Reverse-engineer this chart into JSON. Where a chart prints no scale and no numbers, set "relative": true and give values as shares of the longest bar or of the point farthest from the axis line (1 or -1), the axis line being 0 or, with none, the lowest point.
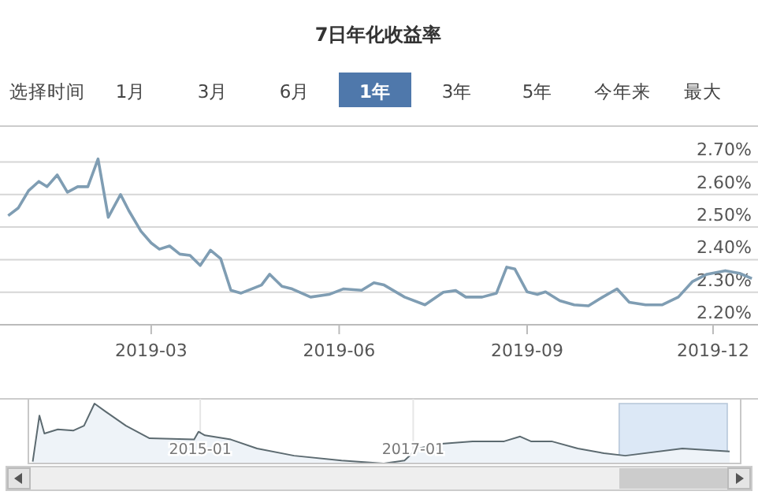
{
  "chart_data": [
    {
      "type": "line",
      "title": "7日年化收益率",
      "annotations": [
        "选择时间",
        "1月",
        "3月",
        "6月",
        "1年",
        "3年",
        "5年",
        "今年来",
        "最大"
      ],
      "x": [
        "2018-12-21",
        "2018-12-26",
        "2018-12-31",
        "2019-01-05",
        "2019-01-09",
        "2019-01-14",
        "2019-01-19",
        "2019-01-24",
        "2019-01-29",
        "2019-02-03",
        "2019-02-08",
        "2019-02-14",
        "2019-02-18",
        "2019-02-24",
        "2019-03-01",
        "2019-03-05",
        "2019-03-10",
        "2019-03-15",
        "2019-03-20",
        "2019-03-25",
        "2019-03-30",
        "2019-04-04",
        "2019-04-09",
        "2019-04-14",
        "2019-04-24",
        "2019-04-28",
        "2019-05-04",
        "2019-05-09",
        "2019-05-18",
        "2019-05-27",
        "2019-06-03",
        "2019-06-12",
        "2019-06-18",
        "2019-06-23",
        "2019-07-03",
        "2019-07-13",
        "2019-07-22",
        "2019-07-28",
        "2019-08-02",
        "2019-08-10",
        "2019-08-17",
        "2019-08-22",
        "2019-08-26",
        "2019-09-01",
        "2019-09-06",
        "2019-09-10",
        "2019-09-17",
        "2019-09-24",
        "2019-10-01",
        "2019-10-08",
        "2019-10-15",
        "2019-10-21",
        "2019-10-29",
        "2019-11-06",
        "2019-11-14",
        "2019-11-21",
        "2019-11-28",
        "2019-12-07",
        "2019-12-14",
        "2019-12-20"
      ],
      "series": [
        {
          "color": "#7f9db3",
          "values": [
            2.535,
            2.559,
            2.612,
            2.64,
            2.624,
            2.66,
            2.607,
            2.624,
            2.624,
            2.709,
            2.53,
            2.6,
            2.551,
            2.487,
            2.451,
            2.432,
            2.442,
            2.417,
            2.413,
            2.382,
            2.429,
            2.403,
            2.306,
            2.297,
            2.322,
            2.355,
            2.318,
            2.31,
            2.285,
            2.293,
            2.31,
            2.306,
            2.329,
            2.322,
            2.285,
            2.261,
            2.3,
            2.305,
            2.285,
            2.285,
            2.297,
            2.377,
            2.371,
            2.301,
            2.293,
            2.301,
            2.274,
            2.261,
            2.258,
            2.285,
            2.31,
            2.269,
            2.261,
            2.261,
            2.285,
            2.333,
            2.355,
            2.366,
            2.358,
            2.342
          ]
        }
      ],
      "xlim": [
        "2018-12-17",
        "2019-12-23"
      ],
      "xticks": [
        "2019-03",
        "2019-06",
        "2019-09",
        "2019-12"
      ],
      "ylim": [
        2.2,
        2.81
      ],
      "yticks": [
        {
          "value": 2.2,
          "label": "2.20%"
        },
        {
          "value": 2.3,
          "label": "2.30%"
        },
        {
          "value": 2.4,
          "label": "2.40%"
        },
        {
          "value": 2.5,
          "label": "2.50%"
        },
        {
          "value": 2.6,
          "label": "2.60%"
        },
        {
          "value": 2.7,
          "label": "2.70%"
        }
      ],
      "grid": "y",
      "marker": "none",
      "line_style": "solid"
    },
    {
      "type": "area",
      "relative": true,
      "x": [
        "2013-06-05",
        "2013-06-28",
        "2013-07-15",
        "2013-08-30",
        "2013-10-23",
        "2013-11-28",
        "2014-01-03",
        "2014-02-09",
        "2014-04-21",
        "2014-07-11",
        "2014-12-11",
        "2014-12-26",
        "2015-01-17",
        "2015-04-16",
        "2015-07-15",
        "2015-11-19",
        "2016-04-30",
        "2016-09-22",
        "2016-12-02",
        "2017-01-16",
        "2017-04-08",
        "2017-07-24",
        "2017-11-09",
        "2018-01-03",
        "2018-02-09",
        "2018-04-21",
        "2018-07-20",
        "2018-10-18",
        "2018-12-30",
        "2019-07-14",
        "2019-12-23"
      ],
      "series": [
        {
          "color": "#5c6a70",
          "values": [
            0.03,
            0.8,
            0.5,
            0.57,
            0.55,
            0.63,
            1,
            0.87,
            0.63,
            0.42,
            0.4,
            0.53,
            0.47,
            0.4,
            0.25,
            0.13,
            0.05,
            0,
            0.05,
            0.25,
            0.33,
            0.37,
            0.37,
            0.45,
            0.37,
            0.37,
            0.25,
            0.17,
            0.13,
            0.25,
            0.2
          ]
        }
      ],
      "xlim": [
        "2013-05-21",
        "2020-01-30"
      ],
      "xticks": [
        "2015-01",
        "2017-01"
      ],
      "bands": [
        {
          "axis": "x",
          "from": "2018-12-09",
          "to": "2019-12-15",
          "color": "#dce8f6"
        }
      ]
    }
  ]
}
